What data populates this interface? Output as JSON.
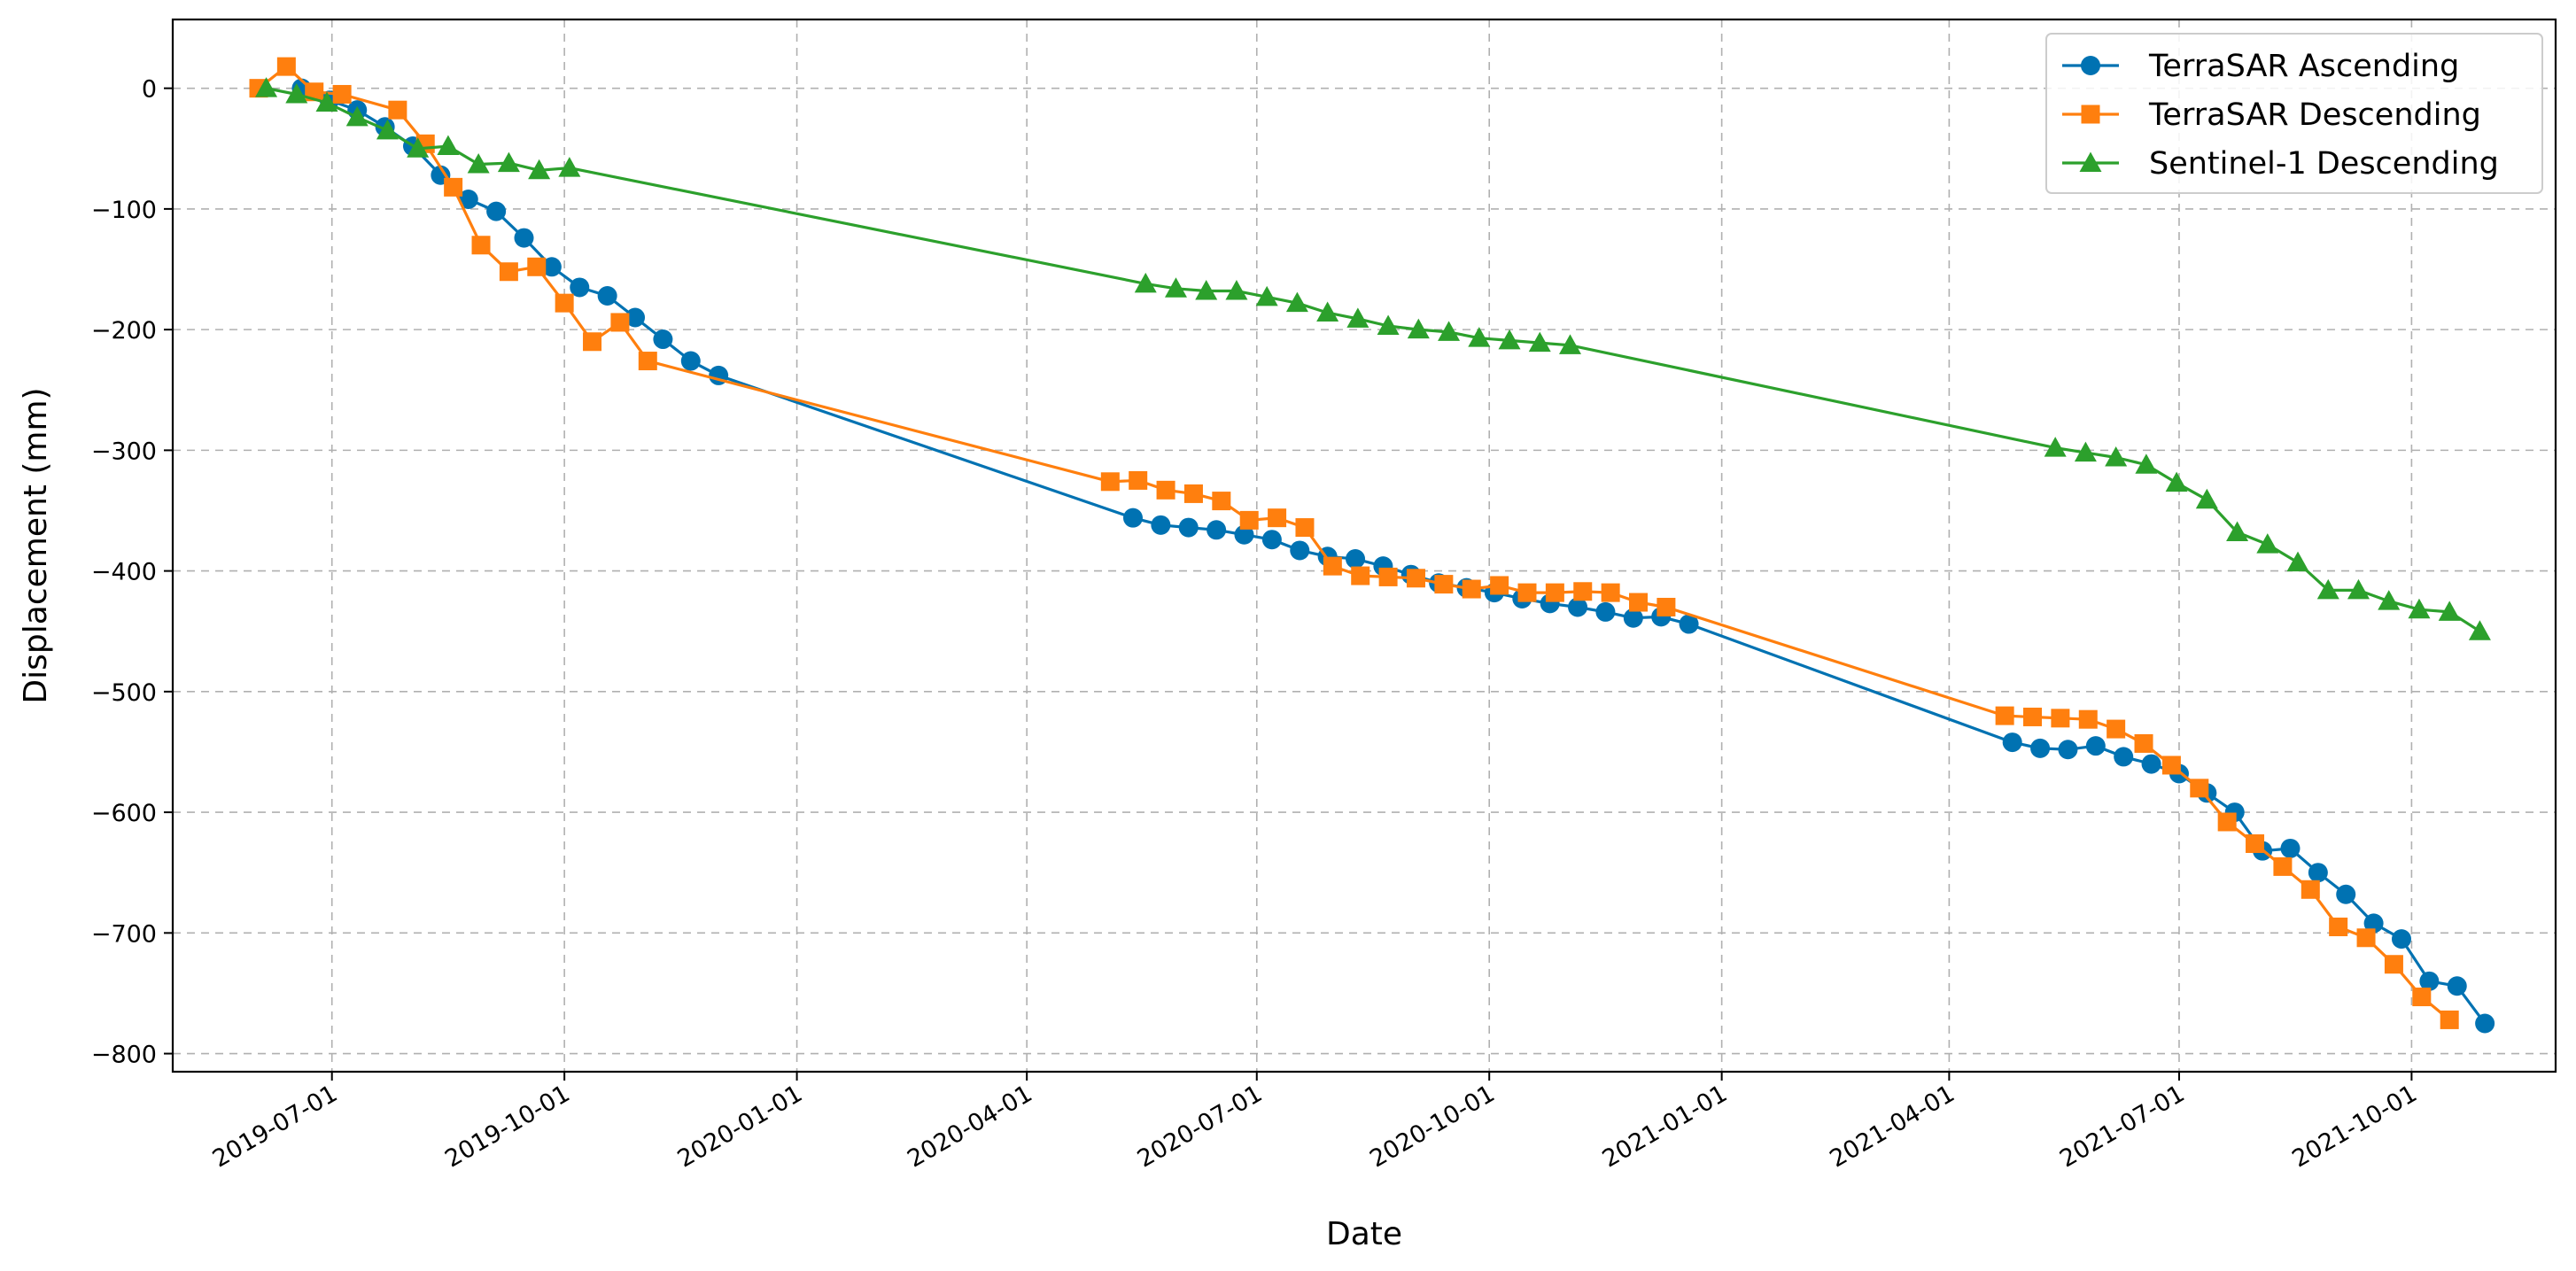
{
  "chart_data": {
    "type": "line",
    "xlabel": "Date",
    "ylabel": "Displacement (mm)",
    "xlim": [
      "2019-04-29",
      "2021-11-27"
    ],
    "ylim": [
      -815,
      57
    ],
    "x_ticks": [
      "2019-07-01",
      "2019-10-01",
      "2020-01-01",
      "2020-04-01",
      "2020-07-01",
      "2020-10-01",
      "2021-01-01",
      "2021-04-01",
      "2021-07-01",
      "2021-10-01"
    ],
    "y_ticks": [
      0,
      -100,
      -200,
      -300,
      -400,
      -500,
      -600,
      -700,
      -800
    ],
    "grid": true,
    "legend_position": "top-right",
    "series": [
      {
        "name": "TerraSAR Ascending",
        "color": "#0072B2",
        "marker": "circle",
        "points": [
          [
            "2019-06-19",
            0
          ],
          [
            "2019-06-30",
            -10
          ],
          [
            "2019-07-11",
            -18
          ],
          [
            "2019-07-22",
            -32
          ],
          [
            "2019-08-02",
            -48
          ],
          [
            "2019-08-13",
            -72
          ],
          [
            "2019-08-24",
            -92
          ],
          [
            "2019-09-04",
            -102
          ],
          [
            "2019-09-15",
            -124
          ],
          [
            "2019-09-26",
            -148
          ],
          [
            "2019-10-07",
            -165
          ],
          [
            "2019-10-18",
            -172
          ],
          [
            "2019-10-29",
            -190
          ],
          [
            "2019-11-09",
            -208
          ],
          [
            "2019-11-20",
            -226
          ],
          [
            "2019-12-01",
            -238
          ],
          [
            "2020-05-13",
            -356
          ],
          [
            "2020-05-24",
            -362
          ],
          [
            "2020-06-04",
            -364
          ],
          [
            "2020-06-15",
            -366
          ],
          [
            "2020-06-26",
            -370
          ],
          [
            "2020-07-07",
            -374
          ],
          [
            "2020-07-18",
            -383
          ],
          [
            "2020-07-29",
            -388
          ],
          [
            "2020-08-09",
            -390
          ],
          [
            "2020-08-20",
            -396
          ],
          [
            "2020-08-31",
            -403
          ],
          [
            "2020-09-11",
            -410
          ],
          [
            "2020-09-22",
            -414
          ],
          [
            "2020-10-03",
            -418
          ],
          [
            "2020-10-14",
            -423
          ],
          [
            "2020-10-25",
            -427
          ],
          [
            "2020-11-05",
            -430
          ],
          [
            "2020-11-16",
            -434
          ],
          [
            "2020-11-27",
            -439
          ],
          [
            "2020-12-08",
            -438
          ],
          [
            "2020-12-19",
            -444
          ],
          [
            "2021-04-26",
            -542
          ],
          [
            "2021-05-07",
            -547
          ],
          [
            "2021-05-18",
            -548
          ],
          [
            "2021-05-29",
            -545
          ],
          [
            "2021-06-09",
            -554
          ],
          [
            "2021-06-20",
            -560
          ],
          [
            "2021-07-01",
            -568
          ],
          [
            "2021-07-12",
            -584
          ],
          [
            "2021-07-23",
            -600
          ],
          [
            "2021-08-03",
            -632
          ],
          [
            "2021-08-14",
            -630
          ],
          [
            "2021-08-25",
            -650
          ],
          [
            "2021-09-05",
            -668
          ],
          [
            "2021-09-16",
            -692
          ],
          [
            "2021-09-27",
            -705
          ],
          [
            "2021-10-08",
            -740
          ],
          [
            "2021-10-19",
            -744
          ],
          [
            "2021-10-30",
            -775
          ]
        ]
      },
      {
        "name": "TerraSAR Descending",
        "color": "#FF7F0E",
        "marker": "square",
        "points": [
          [
            "2019-06-02",
            0
          ],
          [
            "2019-06-13",
            18
          ],
          [
            "2019-06-24",
            -3
          ],
          [
            "2019-07-05",
            -5
          ],
          [
            "2019-07-27",
            -18
          ],
          [
            "2019-08-07",
            -46
          ],
          [
            "2019-08-18",
            -82
          ],
          [
            "2019-08-29",
            -130
          ],
          [
            "2019-09-09",
            -152
          ],
          [
            "2019-09-20",
            -148
          ],
          [
            "2019-10-01",
            -178
          ],
          [
            "2019-10-12",
            -210
          ],
          [
            "2019-10-23",
            -194
          ],
          [
            "2019-11-03",
            -226
          ],
          [
            "2020-05-04",
            -326
          ],
          [
            "2020-05-15",
            -325
          ],
          [
            "2020-05-26",
            -333
          ],
          [
            "2020-06-06",
            -336
          ],
          [
            "2020-06-17",
            -342
          ],
          [
            "2020-06-28",
            -358
          ],
          [
            "2020-07-09",
            -356
          ],
          [
            "2020-07-20",
            -364
          ],
          [
            "2020-07-31",
            -396
          ],
          [
            "2020-08-11",
            -404
          ],
          [
            "2020-08-22",
            -405
          ],
          [
            "2020-09-02",
            -406
          ],
          [
            "2020-09-13",
            -411
          ],
          [
            "2020-09-24",
            -415
          ],
          [
            "2020-10-05",
            -412
          ],
          [
            "2020-10-16",
            -418
          ],
          [
            "2020-10-27",
            -418
          ],
          [
            "2020-11-07",
            -417
          ],
          [
            "2020-11-18",
            -418
          ],
          [
            "2020-11-29",
            -426
          ],
          [
            "2020-12-10",
            -430
          ],
          [
            "2021-04-23",
            -520
          ],
          [
            "2021-05-04",
            -521
          ],
          [
            "2021-05-15",
            -522
          ],
          [
            "2021-05-26",
            -523
          ],
          [
            "2021-06-06",
            -531
          ],
          [
            "2021-06-17",
            -543
          ],
          [
            "2021-06-28",
            -561
          ],
          [
            "2021-07-09",
            -580
          ],
          [
            "2021-07-20",
            -608
          ],
          [
            "2021-07-31",
            -626
          ],
          [
            "2021-08-11",
            -645
          ],
          [
            "2021-08-22",
            -664
          ],
          [
            "2021-09-02",
            -695
          ],
          [
            "2021-09-13",
            -704
          ],
          [
            "2021-09-24",
            -726
          ],
          [
            "2021-10-05",
            -753
          ],
          [
            "2021-10-16",
            -772
          ]
        ]
      },
      {
        "name": "Sentinel-1 Descending",
        "color": "#2CA02C",
        "marker": "triangle",
        "points": [
          [
            "2019-06-05",
            0
          ],
          [
            "2019-06-17",
            -5
          ],
          [
            "2019-06-29",
            -12
          ],
          [
            "2019-07-11",
            -24
          ],
          [
            "2019-07-23",
            -35
          ],
          [
            "2019-08-04",
            -50
          ],
          [
            "2019-08-16",
            -48
          ],
          [
            "2019-08-28",
            -63
          ],
          [
            "2019-09-09",
            -62
          ],
          [
            "2019-09-21",
            -68
          ],
          [
            "2019-10-03",
            -66
          ],
          [
            "2020-05-18",
            -162
          ],
          [
            "2020-05-30",
            -166
          ],
          [
            "2020-06-11",
            -168
          ],
          [
            "2020-06-23",
            -168
          ],
          [
            "2020-07-05",
            -173
          ],
          [
            "2020-07-17",
            -178
          ],
          [
            "2020-07-29",
            -186
          ],
          [
            "2020-08-10",
            -191
          ],
          [
            "2020-08-22",
            -197
          ],
          [
            "2020-09-03",
            -200
          ],
          [
            "2020-09-15",
            -202
          ],
          [
            "2020-09-27",
            -207
          ],
          [
            "2020-10-09",
            -209
          ],
          [
            "2020-10-21",
            -211
          ],
          [
            "2020-11-02",
            -213
          ],
          [
            "2021-05-13",
            -298
          ],
          [
            "2021-05-25",
            -302
          ],
          [
            "2021-06-06",
            -306
          ],
          [
            "2021-06-18",
            -312
          ],
          [
            "2021-06-30",
            -327
          ],
          [
            "2021-07-12",
            -341
          ],
          [
            "2021-07-24",
            -368
          ],
          [
            "2021-08-05",
            -378
          ],
          [
            "2021-08-17",
            -393
          ],
          [
            "2021-08-29",
            -416
          ],
          [
            "2021-09-10",
            -416
          ],
          [
            "2021-09-22",
            -425
          ],
          [
            "2021-10-04",
            -432
          ],
          [
            "2021-10-16",
            -434
          ],
          [
            "2021-10-28",
            -450
          ]
        ]
      }
    ]
  }
}
